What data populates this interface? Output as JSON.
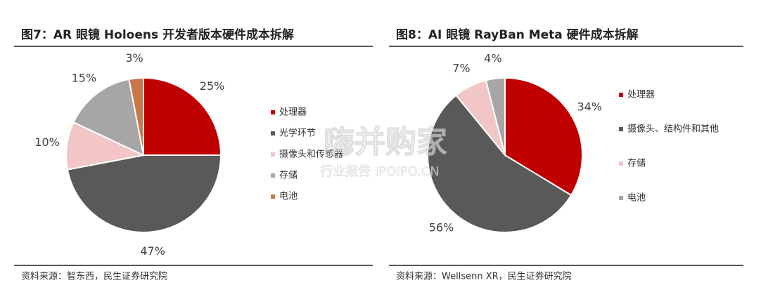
{
  "chart_data": [
    {
      "type": "pie",
      "title": "图7：AR 眼镜 Holoens 开发者版本硬件成本拆解",
      "categories": [
        "处理器",
        "光学环节",
        "摄像头和传感器",
        "存储",
        "电池"
      ],
      "values": [
        25,
        47,
        10,
        15,
        3
      ],
      "value_labels": [
        "25%",
        "47%",
        "10%",
        "15%",
        "3%"
      ],
      "colors": [
        "#c00000",
        "#595959",
        "#f2c6c6",
        "#a6a6a6",
        "#c9784a"
      ],
      "source": "资料来源：智东西，民生证券研究院"
    },
    {
      "type": "pie",
      "title": "图8：AI 眼镜 RayBan Meta 硬件成本拆解",
      "categories": [
        "处理器",
        "摄像头、结构件和其他",
        "存储",
        "电池"
      ],
      "values": [
        34,
        56,
        7,
        4
      ],
      "value_labels": [
        "34%",
        "56%",
        "7%",
        "4%"
      ],
      "colors": [
        "#c00000",
        "#595959",
        "#f2c6c6",
        "#a6a6a6"
      ],
      "source": "资料来源：Wellsenn XR，民生证券研究院"
    }
  ],
  "watermark": {
    "title": "嗨并购家",
    "subtitle": "行业报告 IPOIPO.CN"
  }
}
